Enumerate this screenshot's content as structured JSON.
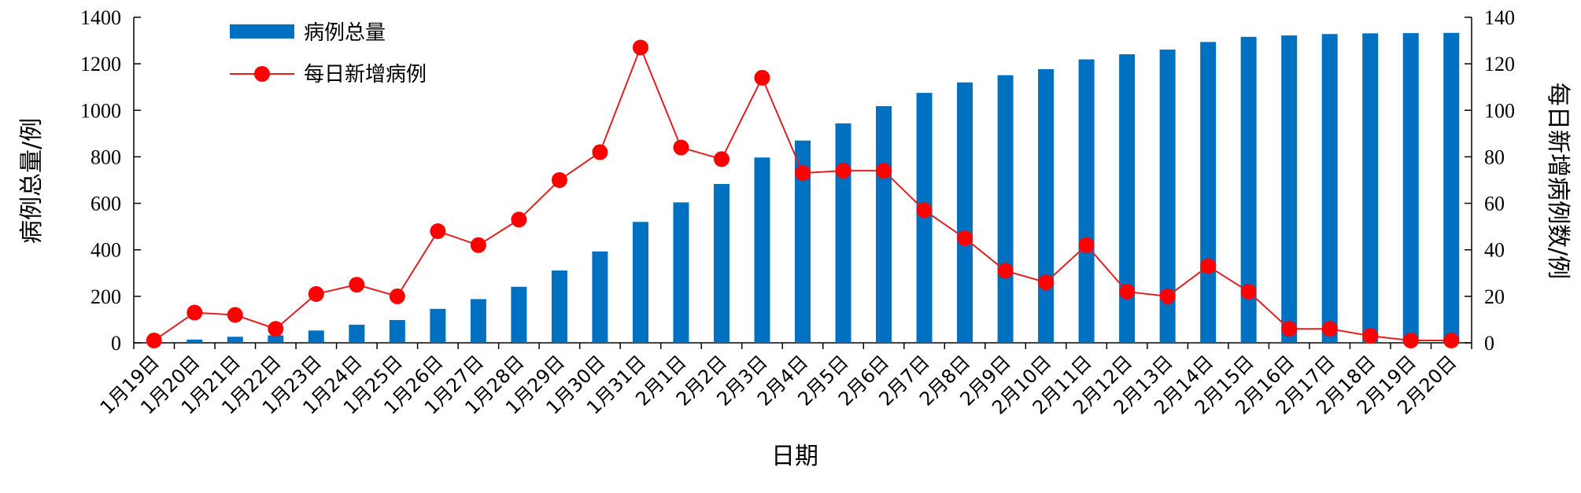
{
  "chart_data": {
    "type": "bar+line",
    "xlabel": "日期",
    "ylabel_left": "病例总量/例",
    "ylabel_right": "每日新增病例数/例",
    "ylim_left": [
      0,
      1400
    ],
    "ylim_right": [
      0,
      140
    ],
    "yticks_left": [
      "0",
      "200",
      "400",
      "600",
      "800",
      "1000",
      "1200",
      "1400"
    ],
    "yticks_right": [
      "0",
      "20",
      "40",
      "60",
      "80",
      "100",
      "120",
      "140"
    ],
    "legend_placement": "top-left",
    "grid": false,
    "categories": [
      "1月19日",
      "1月20日",
      "1月21日",
      "1月22日",
      "1月23日",
      "1月24日",
      "1月25日",
      "1月26日",
      "1月27日",
      "1月28日",
      "1月29日",
      "1月30日",
      "1月31日",
      "2月1日",
      "2月2日",
      "2月3日",
      "2月4日",
      "2月5日",
      "2月6日",
      "2月7日",
      "2月8日",
      "2月9日",
      "2月10日",
      "2月11日",
      "2月12日",
      "2月13日",
      "2月14日",
      "2月15日",
      "2月16日",
      "2月17日",
      "2月18日",
      "2月19日",
      "2月20日"
    ],
    "series": [
      {
        "name": "病例总量",
        "kind": "bar",
        "axis": "left",
        "color": "#0070C0",
        "values": [
          1,
          14,
          26,
          32,
          53,
          78,
          98,
          146,
          188,
          241,
          311,
          393,
          520,
          604,
          683,
          797,
          870,
          944,
          1018,
          1075,
          1120,
          1151,
          1177,
          1219,
          1241,
          1261,
          1294,
          1316,
          1322,
          1328,
          1331,
          1332,
          1333
        ]
      },
      {
        "name": "每日新增病例",
        "kind": "line",
        "axis": "right",
        "color": "#FF0000",
        "line_color": "#E02020",
        "values": [
          1,
          13,
          12,
          6,
          21,
          25,
          20,
          48,
          42,
          53,
          70,
          82,
          127,
          84,
          79,
          114,
          73,
          74,
          74,
          57,
          45,
          31,
          26,
          42,
          22,
          20,
          33,
          22,
          6,
          6,
          3,
          1,
          1
        ]
      }
    ]
  }
}
